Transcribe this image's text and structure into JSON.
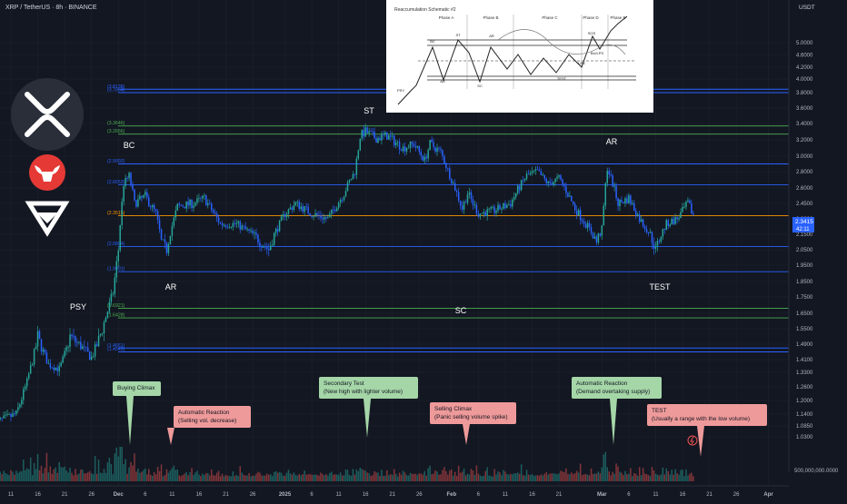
{
  "header": {
    "symbol": "XRP / TetherUS · 8h · BINANCE"
  },
  "price_axis": {
    "currency": "USDT",
    "ticks": [
      "5.0000",
      "4.6000",
      "4.2000",
      "4.0000",
      "3.8000",
      "3.6000",
      "3.4000",
      "3.2000",
      "3.0000",
      "2.8000",
      "2.6000",
      "2.4500",
      "2.3000",
      "2.1500",
      "2.0500",
      "1.9500",
      "1.8500",
      "1.7500",
      "1.6500",
      "1.5500",
      "1.4900",
      "1.4100",
      "1.3300",
      "1.2600",
      "1.2000",
      "1.1400",
      "1.0850",
      "1.0300"
    ],
    "last_price": "2.3415",
    "countdown": "42:11",
    "volume_label": "500,000,000.0000"
  },
  "time_axis": {
    "ticks": [
      "11",
      "16",
      "21",
      "26",
      "Dec",
      "6",
      "11",
      "16",
      "21",
      "26",
      "2025",
      "6",
      "11",
      "16",
      "21",
      "26",
      "Feb",
      "6",
      "11",
      "16",
      "21",
      "Mar",
      "6",
      "11",
      "16",
      "21",
      "26",
      "Apr"
    ]
  },
  "levels": [
    {
      "label": "(3.8138)",
      "price": 3.85,
      "color": "#2962ff"
    },
    {
      "label": "(3.7854)",
      "price": 3.8,
      "color": "#2962ff"
    },
    {
      "label": "(3.3646)",
      "price": 3.37,
      "color": "#4caf50"
    },
    {
      "label": "(3.2666)",
      "price": 3.27,
      "color": "#4caf50"
    },
    {
      "label": "(2.9092)",
      "price": 2.9,
      "color": "#2962ff"
    },
    {
      "label": "(2.6653)",
      "price": 2.64,
      "color": "#2962ff"
    },
    {
      "label": "(2.3515)",
      "price": 2.33,
      "color": "#ff9800"
    },
    {
      "label": "(2.0804)",
      "price": 2.07,
      "color": "#2962ff"
    },
    {
      "label": "(1.9091)",
      "price": 1.91,
      "color": "#2962ff"
    },
    {
      "label": "(1.6921)",
      "price": 1.68,
      "color": "#4caf50"
    },
    {
      "label": "(1.6428)",
      "price": 1.62,
      "color": "#4caf50"
    },
    {
      "label": "(1.4661)",
      "price": 1.47,
      "color": "#2962ff"
    },
    {
      "label": "(1.4545)",
      "price": 1.45,
      "color": "#2962ff"
    }
  ],
  "markers": [
    {
      "label": "PSY"
    },
    {
      "label": "BC"
    },
    {
      "label": "AR"
    },
    {
      "label": "ST"
    },
    {
      "label": "SC"
    },
    {
      "label": "AR"
    },
    {
      "label": "TEST"
    }
  ],
  "callouts": [
    {
      "line1": "Buying Climax",
      "line2": "",
      "color": "#a5d6a7"
    },
    {
      "line1": "Automatic Reaction",
      "line2": "(Selling vol. decrease)",
      "color": "#ef9a9a"
    },
    {
      "line1": "Secondary Test",
      "line2": "(New high with lighter volume)",
      "color": "#a5d6a7"
    },
    {
      "line1": "Selling Climax",
      "line2": "(Panic selling volume spike)",
      "color": "#ef9a9a"
    },
    {
      "line1": "Automatic Reaction",
      "line2": "(Demand overtaking supply)",
      "color": "#a5d6a7"
    },
    {
      "line1": "TEST",
      "line2": "(Usually a range with the low volume)",
      "color": "#ef9a9a"
    }
  ],
  "schematic": {
    "title": "Reaccumulation Schematic #2",
    "phases": [
      "Phase A",
      "Phase B",
      "Phase C",
      "Phase D",
      "Phase E"
    ],
    "labels": [
      "PSY",
      "BC",
      "AR",
      "ST",
      "AR",
      "SC",
      "TEST",
      "SOS",
      "BU/LPS",
      "LPS"
    ]
  },
  "colors": {
    "bg": "#131722",
    "up": "#26a69a",
    "down": "#2962ff",
    "grid": "#1e222d",
    "text": "#d1d4dc"
  },
  "chart_data": {
    "type": "candlestick",
    "title": "XRP / TetherUS · 8h · BINANCE",
    "y_unit": "USDT",
    "ylim": [
      1.0,
      5.2
    ],
    "y_scale": "log",
    "price_path": [
      {
        "date": "Nov 8",
        "price": 1.1
      },
      {
        "date": "Nov 12",
        "price": 1.14
      },
      {
        "date": "Nov 14",
        "price": 1.28
      },
      {
        "date": "Nov 16",
        "price": 1.52
      },
      {
        "date": "Nov 18",
        "price": 1.38
      },
      {
        "date": "Nov 20",
        "price": 1.35
      },
      {
        "date": "Nov 22",
        "price": 1.52
      },
      {
        "date": "Nov 24",
        "price": 1.48
      },
      {
        "date": "Nov 26",
        "price": 1.42
      },
      {
        "date": "Nov 28",
        "price": 1.55
      },
      {
        "date": "Nov 30",
        "price": 1.78
      },
      {
        "date": "Dec 1",
        "price": 2.05
      },
      {
        "date": "Dec 2",
        "price": 2.65
      },
      {
        "date": "Dec 3",
        "price": 2.75
      },
      {
        "date": "Dec 4",
        "price": 2.45
      },
      {
        "date": "Dec 6",
        "price": 2.52
      },
      {
        "date": "Dec 8",
        "price": 2.35
      },
      {
        "date": "Dec 9",
        "price": 2.1
      },
      {
        "date": "Dec 10",
        "price": 2.05
      },
      {
        "date": "Dec 12",
        "price": 2.42
      },
      {
        "date": "Dec 15",
        "price": 2.45
      },
      {
        "date": "Dec 17",
        "price": 2.5
      },
      {
        "date": "Dec 20",
        "price": 2.25
      },
      {
        "date": "Dec 23",
        "price": 2.25
      },
      {
        "date": "Dec 26",
        "price": 2.15
      },
      {
        "date": "Dec 29",
        "price": 2.05
      },
      {
        "date": "Jan 1",
        "price": 2.35
      },
      {
        "date": "Jan 3",
        "price": 2.45
      },
      {
        "date": "Jan 6",
        "price": 2.35
      },
      {
        "date": "Jan 9",
        "price": 2.3
      },
      {
        "date": "Jan 12",
        "price": 2.55
      },
      {
        "date": "Jan 14",
        "price": 2.8
      },
      {
        "date": "Jan 15",
        "price": 3.25
      },
      {
        "date": "Jan 16",
        "price": 3.3
      },
      {
        "date": "Jan 18",
        "price": 3.22
      },
      {
        "date": "Jan 20",
        "price": 3.25
      },
      {
        "date": "Jan 23",
        "price": 3.1
      },
      {
        "date": "Jan 25",
        "price": 3.15
      },
      {
        "date": "Jan 27",
        "price": 2.95
      },
      {
        "date": "Jan 28",
        "price": 3.15
      },
      {
        "date": "Jan 30",
        "price": 3.05
      },
      {
        "date": "Feb 1",
        "price": 2.7
      },
      {
        "date": "Feb 3",
        "price": 2.4
      },
      {
        "date": "Feb 4",
        "price": 2.55
      },
      {
        "date": "Feb 6",
        "price": 2.35
      },
      {
        "date": "Feb 9",
        "price": 2.38
      },
      {
        "date": "Feb 12",
        "price": 2.45
      },
      {
        "date": "Feb 15",
        "price": 2.75
      },
      {
        "date": "Feb 17",
        "price": 2.8
      },
      {
        "date": "Feb 19",
        "price": 2.65
      },
      {
        "date": "Feb 21",
        "price": 2.72
      },
      {
        "date": "Feb 24",
        "price": 2.4
      },
      {
        "date": "Feb 26",
        "price": 2.25
      },
      {
        "date": "Feb 28",
        "price": 2.1
      },
      {
        "date": "Mar 1",
        "price": 2.2
      },
      {
        "date": "Mar 2",
        "price": 2.85
      },
      {
        "date": "Mar 3",
        "price": 2.65
      },
      {
        "date": "Mar 4",
        "price": 2.45
      },
      {
        "date": "Mar 6",
        "price": 2.5
      },
      {
        "date": "Mar 8",
        "price": 2.3
      },
      {
        "date": "Mar 10",
        "price": 2.15
      },
      {
        "date": "Mar 11",
        "price": 2.05
      },
      {
        "date": "Mar 13",
        "price": 2.25
      },
      {
        "date": "Mar 15",
        "price": 2.3
      },
      {
        "date": "Mar 17",
        "price": 2.45
      },
      {
        "date": "Mar 18",
        "price": 2.34
      }
    ]
  }
}
